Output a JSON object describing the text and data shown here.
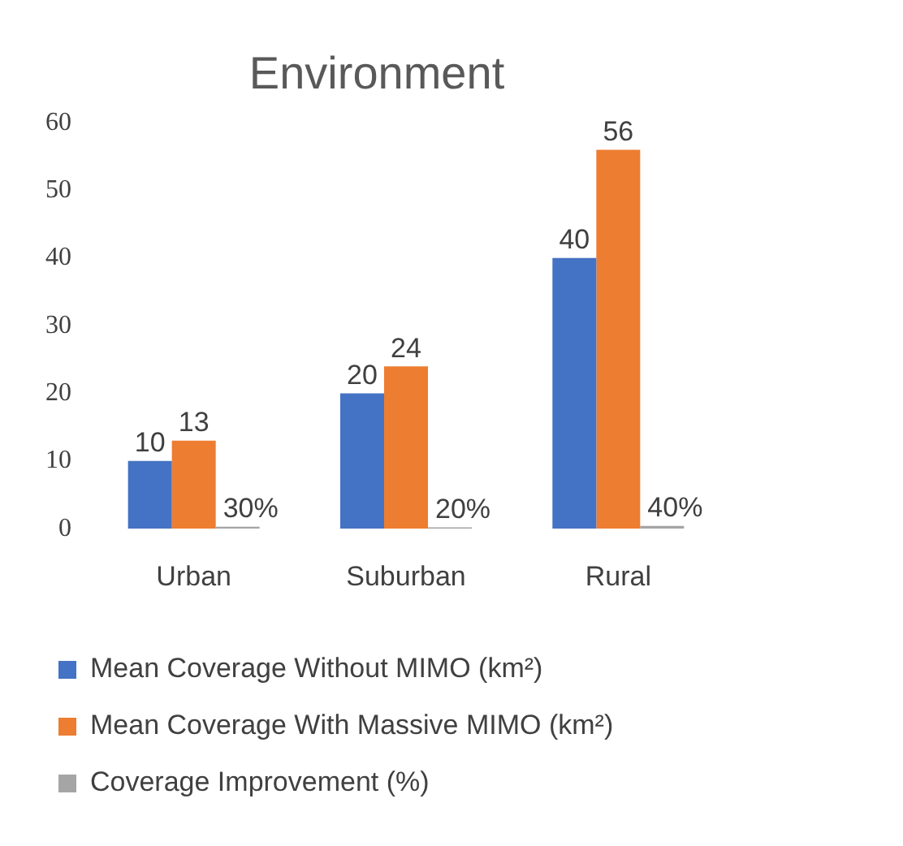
{
  "chart_data": {
    "type": "bar",
    "title": "Environment",
    "categories": [
      "Urban",
      "Suburban",
      "Rural"
    ],
    "series": [
      {
        "name": "Mean Coverage Without MIMO (km²)",
        "color": "#4472c4",
        "values": [
          10,
          20,
          40
        ],
        "value_labels": [
          "10",
          "20",
          "40"
        ]
      },
      {
        "name": "Mean Coverage With Massive MIMO (km²)",
        "color": "#ed7d31",
        "values": [
          13,
          24,
          56
        ],
        "value_labels": [
          "13",
          "24",
          "56"
        ]
      },
      {
        "name": "Coverage Improvement (%)",
        "color": "#a5a5a5",
        "values": [
          0.3,
          0.2,
          0.4
        ],
        "value_labels": [
          "30%",
          "20%",
          "40%"
        ]
      }
    ],
    "ylim": [
      0,
      60
    ],
    "yticks": [
      0,
      10,
      20,
      30,
      40,
      50,
      60
    ],
    "grid": false,
    "legend": "bottom"
  }
}
